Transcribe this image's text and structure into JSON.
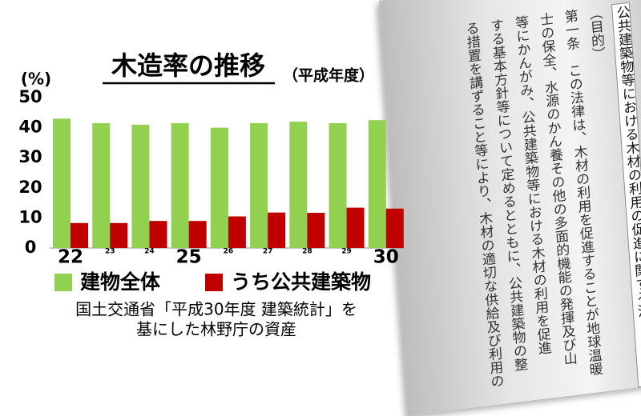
{
  "chart_data": {
    "type": "bar",
    "title": "木造率の推移",
    "subtitle": "（平成年度）",
    "y_unit": "(%)",
    "categories": [
      "22",
      "23",
      "24",
      "25",
      "26",
      "27",
      "28",
      "29",
      "30"
    ],
    "series": [
      {
        "name": "建物全体",
        "color": "#92d050",
        "values": [
          43,
          41.5,
          41,
          41.5,
          40,
          41.5,
          42,
          41.5,
          42.5
        ]
      },
      {
        "name": "うち公共建築物",
        "color": "#c00000",
        "values": [
          8.3,
          8.3,
          9,
          9,
          10.5,
          11.8,
          11.7,
          13.4,
          13.1
        ]
      }
    ],
    "ylim": [
      0,
      50
    ],
    "yticks": [
      0,
      10,
      20,
      30,
      40,
      50
    ],
    "grid": false,
    "source": [
      "国土交通省「平成30年度 建築統計」を",
      "基にした林野庁の資産"
    ]
  },
  "document": {
    "columns": [
      "公共建築物等における木材の利用の促進に関する法",
      "（目的）",
      "第一条　この法律は、木材の利用を促進することが地球温暖",
      "士の保全、水源のかん養その他の多面的機能の発揮及び山",
      "等にかんがみ、公共建築物等における木材の利用を促進",
      "する基本方針等について定めるとともに、公共建築物の整",
      "る措置を講ずること等により、木材の適切な供給及び利用の"
    ]
  }
}
